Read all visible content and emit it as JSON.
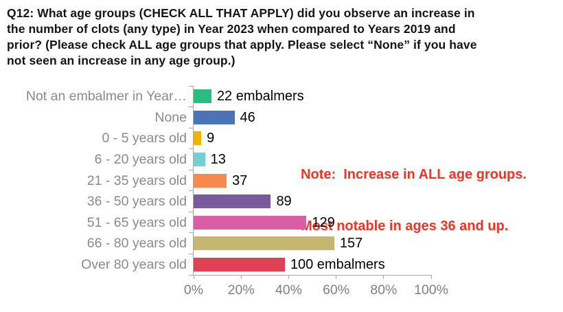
{
  "title_lines": [
    "Q12: What age groups (CHECK ALL THAT APPLY) did you observe an increase in",
    "the number of clots (any type) in Year 2023 when compared to Years 2019 and",
    "prior? (Please check ALL age groups that apply. Please select “None” if you have",
    "not seen an increase in any age group.)"
  ],
  "note": {
    "line1": "Note:  Increase in ALL age groups.",
    "line2": "Most notable in ages 36 and up.",
    "color": "#ee3524"
  },
  "chart_data": {
    "type": "bar",
    "orientation": "horizontal",
    "title": "Q12: What age groups (CHECK ALL THAT APPLY) did you observe an increase in the number of clots (any type) in Year 2023 when compared to Years 2019 and prior? (Please check ALL age groups that apply. Please select “None” if you have not seen an increase in any age group.)",
    "categories": [
      "Not an embalmer in Year…",
      "None",
      "0 - 5 years old",
      "6 - 20 years old",
      "21 - 35 years old",
      "36 - 50 years old",
      "51 - 65 years old",
      "66 - 80 years old",
      "Over 80 years old"
    ],
    "values": [
      22,
      46,
      9,
      13,
      37,
      89,
      129,
      157,
      100
    ],
    "value_labels": [
      "22 embalmers",
      "46",
      "9",
      "13",
      "37",
      "89",
      "129",
      "157",
      "100 embalmers"
    ],
    "percent_of_axis": [
      7.5,
      17.2,
      3.2,
      4.8,
      13.9,
      32.5,
      47.5,
      59.2,
      38.4
    ],
    "bar_colors": [
      "#2cbd7e",
      "#4a74b5",
      "#eeb501",
      "#74ced2",
      "#f6894f",
      "#7a599c",
      "#d95fa4",
      "#c5b674",
      "#dc4456"
    ],
    "x_tick_labels": [
      "0%",
      "20%",
      "40%",
      "60%",
      "80%",
      "100%"
    ],
    "xlim": [
      0,
      100
    ],
    "grid": false,
    "legend": "none",
    "axis_color": "#a6a6a6",
    "category_label_color": "#8a8a8a",
    "x_label_color": "#7f7f7f",
    "value_label_color": "#000000"
  }
}
